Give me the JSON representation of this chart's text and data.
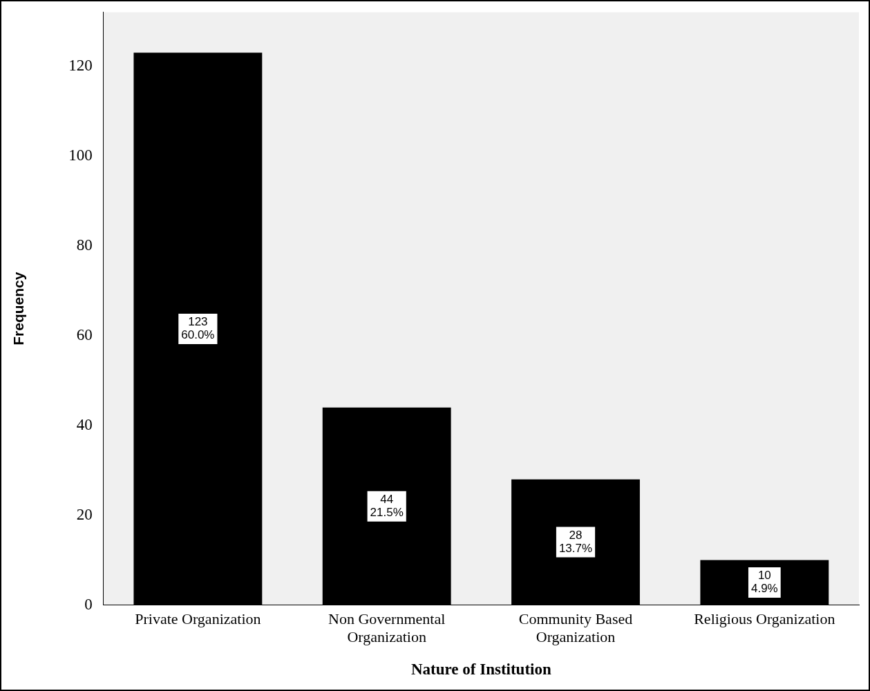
{
  "chart_data": {
    "type": "bar",
    "xlabel": "Nature of Institution",
    "ylabel": "Frequency",
    "categories": [
      "Private Organization",
      "Non Governmental Organization",
      "Community Based Organization",
      "Religious Organization"
    ],
    "values": [
      123,
      44,
      28,
      10
    ],
    "value_labels": [
      "123\n60.0%",
      "44\n21.5%",
      "28\n13.7%",
      "10\n4.9%"
    ],
    "color": "#000000",
    "ylim": [
      0,
      132
    ],
    "yticks": [
      0,
      20,
      40,
      60,
      80,
      100,
      120
    ],
    "grid": false,
    "legend": false
  }
}
